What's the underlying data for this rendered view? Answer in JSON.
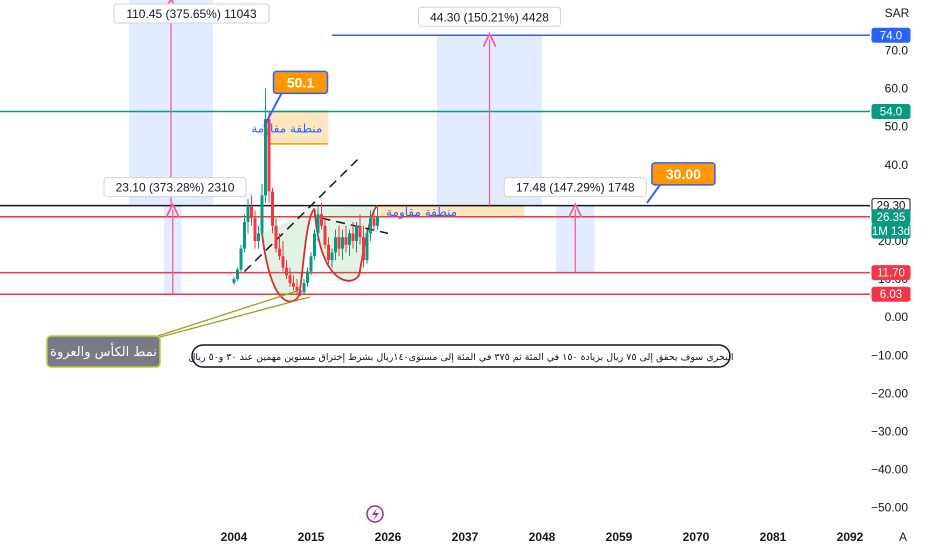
{
  "currency": "SAR",
  "autoscale": "A",
  "chart_data": {
    "type": "candlestick",
    "y_axis_ticks": [
      70,
      60,
      50,
      40,
      30,
      20,
      10,
      0,
      -10,
      -20,
      -30,
      -40,
      -50
    ],
    "x_axis_ticks": [
      "2004",
      "2015",
      "2026",
      "2037",
      "2048",
      "2059",
      "2070",
      "2081",
      "2092"
    ],
    "price_badges": [
      {
        "text": "74.0",
        "value": 74.0,
        "color": "#2962ff",
        "text_color": "#ffffff"
      },
      {
        "text": "54.0",
        "value": 54.0,
        "color": "#089981",
        "text_color": "#ffffff"
      },
      {
        "text": "29.30",
        "value": 29.3,
        "color": "#ffffff",
        "text_color": "#131722",
        "border": "#131722"
      },
      {
        "text": "26.35",
        "value": 26.35,
        "color": "#089981",
        "text_color": "#ffffff"
      },
      {
        "text": "1M 13d",
        "value": 22.6,
        "color": "#089981",
        "text_color": "#ffffff"
      },
      {
        "text": "11.70",
        "value": 11.7,
        "color": "#f23645",
        "text_color": "#ffffff"
      },
      {
        "text": "6.03",
        "value": 6.03,
        "color": "#f23645",
        "text_color": "#ffffff"
      }
    ],
    "horizontal_lines": [
      {
        "value": 74.0,
        "color": "#2962ff",
        "from_year": 2018
      },
      {
        "value": 54.0,
        "color": "#089981"
      },
      {
        "value": 29.3,
        "color": "#131722"
      },
      {
        "value": 26.35,
        "color": "#f23645"
      },
      {
        "value": 11.7,
        "color": "#f23645"
      },
      {
        "value": 6.03,
        "color": "#f23645"
      }
    ],
    "measure_boxes": [
      {
        "label": "110.45 (375.65%) 11043",
        "x_from": 1989,
        "x_to": 2001,
        "y_from": 29.3,
        "y_to": 140,
        "tone": "blue"
      },
      {
        "label": "23.10 (373.28%) 2310",
        "x_from": 1994,
        "x_to": 1996.5,
        "y_from": 6.03,
        "y_to": 29.3,
        "tone": "blue"
      },
      {
        "label": "44.30 (150.21%) 4428",
        "x_from": 2033,
        "x_to": 2048,
        "y_from": 29.3,
        "y_to": 74.0,
        "tone": "blue"
      },
      {
        "label": "17.48 (147.29%) 1748",
        "x_from": 2050,
        "x_to": 2055.5,
        "y_from": 11.7,
        "y_to": 29.3,
        "tone": "blue"
      }
    ],
    "resistance_zones": [
      {
        "label": "منطقة مقاومة",
        "x_from": 2009,
        "x_to": 2017.5,
        "y_from": 45.5,
        "y_to": 54.0
      },
      {
        "label": "منطقة مقاومة",
        "x_from": 2024.5,
        "x_to": 2045.5,
        "y_from": 26.35,
        "y_to": 29.3
      }
    ],
    "callouts": [
      {
        "text": "50.1",
        "value": 50.1,
        "x": 2008.3,
        "box_x": 2013.5
      },
      {
        "text": "30.00",
        "value": 30.0,
        "x": 2063,
        "box_x": 2068.2
      }
    ],
    "pattern_label": "نمط الكأس والعروة",
    "note": "البحري سوف يحقق إلى ٧٥ ريال بزيادة ١٥٠ في المئة  ثم  ٣٧٥ في المئة إلى مستوى١٤٠ريال بشرط إختراق مستوين  مهمين عند ٣٠ و٥٠ ريال",
    "candles": [
      [
        2004,
        9,
        10.5,
        8.5,
        10
      ],
      [
        2004.5,
        10,
        13,
        9.5,
        12.5
      ],
      [
        2005,
        12.5,
        19,
        12,
        18
      ],
      [
        2005.5,
        18,
        27,
        17,
        25
      ],
      [
        2006,
        25,
        31,
        22,
        29
      ],
      [
        2006.5,
        29,
        32,
        24,
        26
      ],
      [
        2007,
        26,
        28,
        18,
        20
      ],
      [
        2007.5,
        20,
        24,
        18,
        22
      ],
      [
        2008,
        22,
        35,
        21,
        32
      ],
      [
        2008.5,
        32,
        60,
        30,
        52
      ],
      [
        2009,
        52,
        54,
        30,
        33
      ],
      [
        2009.5,
        33,
        34,
        22,
        24
      ],
      [
        2010,
        24,
        26,
        17,
        18
      ],
      [
        2010.5,
        18,
        22,
        15,
        16
      ],
      [
        2011,
        16,
        20,
        12,
        13
      ],
      [
        2011.5,
        13,
        15,
        10,
        11
      ],
      [
        2012,
        11,
        13,
        8,
        9
      ],
      [
        2012.5,
        9,
        11,
        7,
        8
      ],
      [
        2013,
        8,
        10,
        6,
        7
      ],
      [
        2013.5,
        7,
        9,
        5.5,
        6.5
      ],
      [
        2014,
        6.5,
        10,
        6,
        9
      ],
      [
        2014.5,
        9,
        13,
        8,
        12
      ],
      [
        2015,
        12,
        17,
        11,
        16
      ],
      [
        2015.5,
        16,
        23,
        15,
        22
      ],
      [
        2016,
        22,
        29,
        20,
        27
      ],
      [
        2016.5,
        27,
        30,
        23,
        24
      ],
      [
        2017,
        24,
        26,
        18,
        19
      ],
      [
        2017.5,
        19,
        21,
        14,
        15
      ],
      [
        2018,
        15,
        18,
        13,
        17
      ],
      [
        2018.5,
        17,
        23,
        15,
        21
      ],
      [
        2019,
        21,
        24,
        16,
        18
      ],
      [
        2019.5,
        18,
        23,
        15,
        21
      ],
      [
        2020,
        21,
        24,
        17,
        19
      ],
      [
        2020.5,
        19,
        23,
        16,
        22
      ],
      [
        2021,
        22,
        25,
        18,
        20
      ],
      [
        2021.5,
        20,
        25,
        17,
        24
      ],
      [
        2022,
        24,
        27,
        19,
        21
      ],
      [
        2022.5,
        21,
        24,
        13,
        15
      ],
      [
        2023,
        15,
        23,
        14,
        22
      ],
      [
        2023.5,
        22,
        28,
        20,
        26
      ],
      [
        2024,
        26,
        27.5,
        23,
        24
      ],
      [
        2024.5,
        24,
        29,
        23,
        26.35
      ]
    ],
    "cup_shape": {
      "start": [
        2008,
        22
      ],
      "low": [
        2011.5,
        5.5
      ],
      "rim": [
        2015.5,
        28.5
      ]
    },
    "handle_shape": {
      "start": [
        2015.5,
        28.5
      ],
      "low": [
        2020.5,
        11.5
      ],
      "end": [
        2024.5,
        29.3
      ]
    },
    "trendline_upper": [
      [
        2005.5,
        12
      ],
      [
        2022,
        42
      ]
    ],
    "trendline_lower": [
      [
        2016.5,
        26
      ],
      [
        2026,
        22
      ]
    ]
  }
}
